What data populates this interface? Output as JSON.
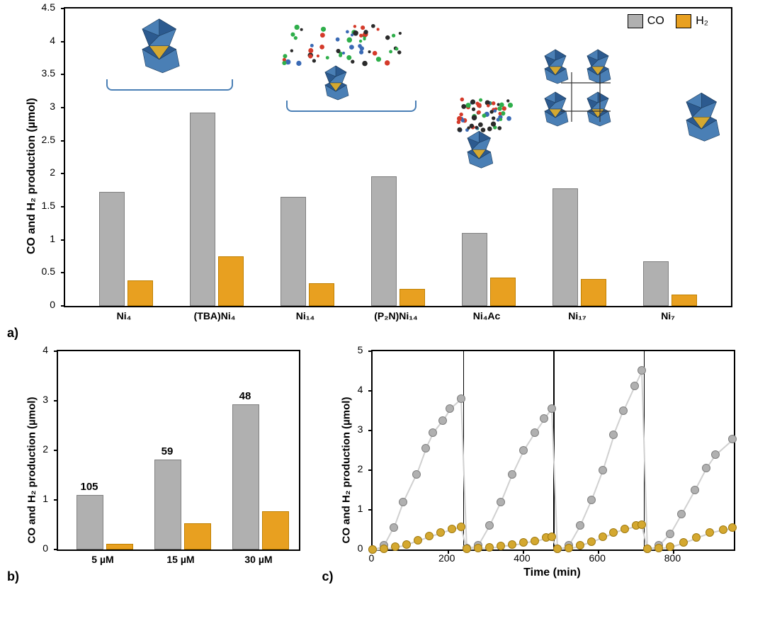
{
  "colors": {
    "co_bar": "#b0b0b0",
    "h2_bar": "#e8a020",
    "bar_border": "#808080",
    "h2_border": "#c08000",
    "mol_blue": "#2c5a8f",
    "mol_blue_light": "#4a7fb5",
    "mol_yellow": "#d4a830",
    "scatter_gray": "#808080",
    "scatter_gray_light": "#b0b0b0",
    "scatter_yellow": "#d4a830",
    "scatter_line": "#d8d8d8"
  },
  "panel_a": {
    "label": "a)",
    "ylabel": "CO and H₂ production (µmol)",
    "ylim": [
      0,
      4.5
    ],
    "ytick_step": 0.5,
    "legend": [
      {
        "label": "CO",
        "color": "#b0b0b0"
      },
      {
        "label": "H₂",
        "color": "#e8a020"
      }
    ],
    "categories": [
      "Ni₄",
      "(TBA)Ni₄",
      "Ni₁₄",
      "(P₂N)Ni₁₄",
      "Ni₄Ac",
      "Ni₁₇",
      "Ni₇"
    ],
    "co_values": [
      1.7,
      2.9,
      1.63,
      1.94,
      1.08,
      1.76,
      0.65
    ],
    "h2_values": [
      0.36,
      0.73,
      0.32,
      0.24,
      0.41,
      0.39,
      0.15
    ]
  },
  "panel_b": {
    "label": "b)",
    "ylabel": "CO and H₂ production (µmol)",
    "ylim": [
      0,
      4
    ],
    "ytick_step": 1,
    "categories": [
      "5 µM",
      "15 µM",
      "30 µM"
    ],
    "co_values": [
      1.07,
      1.78,
      2.9
    ],
    "h2_values": [
      0.08,
      0.5,
      0.74
    ],
    "bar_labels": [
      "105",
      "59",
      "48"
    ]
  },
  "panel_c": {
    "label": "c)",
    "ylabel": "CO and H₂ production (µmol)",
    "xlabel": "Time (min)",
    "ylim": [
      0,
      5
    ],
    "ytick_step": 1,
    "xlim": [
      0,
      960
    ],
    "xtick_step": 200,
    "vlines": [
      240,
      480,
      720
    ],
    "co_series": [
      [
        0,
        0
      ],
      [
        30,
        0.1
      ],
      [
        55,
        0.55
      ],
      [
        80,
        1.2
      ],
      [
        115,
        1.9
      ],
      [
        140,
        2.55
      ],
      [
        160,
        2.95
      ],
      [
        185,
        3.25
      ],
      [
        205,
        3.55
      ],
      [
        235,
        3.8
      ],
      [
        250,
        0.03
      ],
      [
        280,
        0.1
      ],
      [
        310,
        0.6
      ],
      [
        340,
        1.2
      ],
      [
        370,
        1.9
      ],
      [
        400,
        2.5
      ],
      [
        430,
        2.95
      ],
      [
        455,
        3.3
      ],
      [
        475,
        3.55
      ],
      [
        490,
        0.02
      ],
      [
        520,
        0.1
      ],
      [
        550,
        0.6
      ],
      [
        580,
        1.25
      ],
      [
        610,
        2.0
      ],
      [
        640,
        2.9
      ],
      [
        665,
        3.5
      ],
      [
        695,
        4.12
      ],
      [
        715,
        4.52
      ],
      [
        730,
        0.02
      ],
      [
        760,
        0.1
      ],
      [
        790,
        0.4
      ],
      [
        820,
        0.9
      ],
      [
        855,
        1.5
      ],
      [
        885,
        2.05
      ],
      [
        910,
        2.4
      ],
      [
        955,
        2.78
      ]
    ],
    "h2_series": [
      [
        0,
        0
      ],
      [
        30,
        0.02
      ],
      [
        60,
        0.07
      ],
      [
        90,
        0.12
      ],
      [
        120,
        0.24
      ],
      [
        150,
        0.34
      ],
      [
        180,
        0.42
      ],
      [
        210,
        0.51
      ],
      [
        235,
        0.58
      ],
      [
        250,
        0.02
      ],
      [
        280,
        0.04
      ],
      [
        310,
        0.06
      ],
      [
        340,
        0.09
      ],
      [
        370,
        0.13
      ],
      [
        400,
        0.17
      ],
      [
        430,
        0.22
      ],
      [
        460,
        0.3
      ],
      [
        475,
        0.33
      ],
      [
        490,
        0.02
      ],
      [
        520,
        0.04
      ],
      [
        550,
        0.1
      ],
      [
        580,
        0.2
      ],
      [
        610,
        0.32
      ],
      [
        640,
        0.42
      ],
      [
        670,
        0.52
      ],
      [
        700,
        0.6
      ],
      [
        715,
        0.63
      ],
      [
        730,
        0.02
      ],
      [
        760,
        0.04
      ],
      [
        790,
        0.08
      ],
      [
        825,
        0.18
      ],
      [
        860,
        0.3
      ],
      [
        895,
        0.42
      ],
      [
        930,
        0.5
      ],
      [
        955,
        0.55
      ]
    ]
  }
}
